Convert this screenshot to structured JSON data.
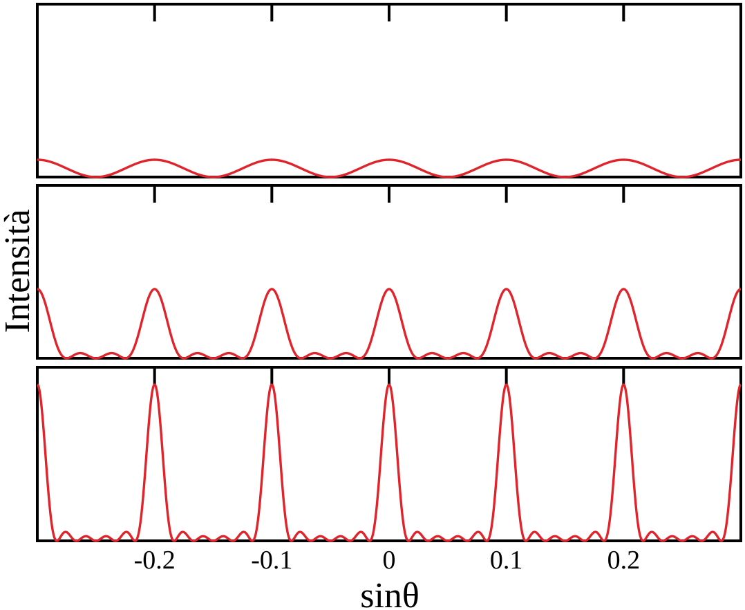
{
  "chart_data": {
    "type": "line",
    "xlabel": "sinθ",
    "ylabel": "Intensità",
    "xlim": [
      -0.3,
      0.3
    ],
    "x_ticks": [
      -0.2,
      -0.1,
      0,
      0.1,
      0.2
    ],
    "x_tick_labels": [
      "-0.2",
      "-0.1",
      "0",
      "0.1",
      "0.2"
    ],
    "grid": false,
    "line_color": "#e0242b",
    "axis_color": "#000000",
    "panels": [
      {
        "slits": 2,
        "period": 0.1,
        "principal_maximum_relative_height": 0.1,
        "principal_maxima_x": [
          -0.3,
          -0.2,
          -0.1,
          0,
          0.1,
          0.2,
          0.3
        ],
        "minima_x": [
          -0.25,
          -0.15,
          -0.05,
          0.05,
          0.15,
          0.25
        ]
      },
      {
        "slits": 4,
        "period": 0.1,
        "principal_maximum_relative_height": 0.4,
        "principal_maxima_x": [
          -0.3,
          -0.2,
          -0.1,
          0,
          0.1,
          0.2,
          0.3
        ]
      },
      {
        "slits": 6,
        "period": 0.1,
        "principal_maximum_relative_height": 0.9,
        "principal_maxima_x": [
          -0.3,
          -0.2,
          -0.1,
          0,
          0.1,
          0.2,
          0.3
        ]
      }
    ]
  }
}
